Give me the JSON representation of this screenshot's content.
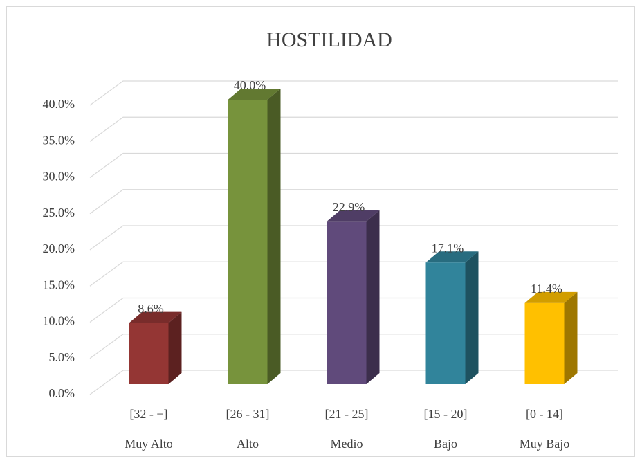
{
  "chart_data": {
    "type": "bar3d",
    "title": "HOSTILIDAD",
    "categories": [
      [
        "[32 - +]",
        "Muy Alto"
      ],
      [
        "[26 - 31]",
        "Alto"
      ],
      [
        "[21 - 25]",
        "Medio"
      ],
      [
        "[15 - 20]",
        "Bajo"
      ],
      [
        "[0 - 14]",
        "Muy Bajo"
      ]
    ],
    "values": [
      8.6,
      40.0,
      22.9,
      17.1,
      11.4
    ],
    "value_labels": [
      "8.6%",
      "40.0%",
      "22.9%",
      "17.1%",
      "11.4%"
    ],
    "colors": [
      "#943634",
      "#77933c",
      "#604a7b",
      "#31849b",
      "#ffc000"
    ],
    "ylim": [
      0,
      40
    ],
    "yticks": [
      {
        "value": 0,
        "label": "0.0%"
      },
      {
        "value": 5,
        "label": "5.0%"
      },
      {
        "value": 10,
        "label": "10.0%"
      },
      {
        "value": 15,
        "label": "15.0%"
      },
      {
        "value": 20,
        "label": "20.0%"
      },
      {
        "value": 25,
        "label": "25.0%"
      },
      {
        "value": 30,
        "label": "30.0%"
      },
      {
        "value": 35,
        "label": "35.0%"
      },
      {
        "value": 40,
        "label": "40.0%"
      }
    ],
    "grid": true
  }
}
